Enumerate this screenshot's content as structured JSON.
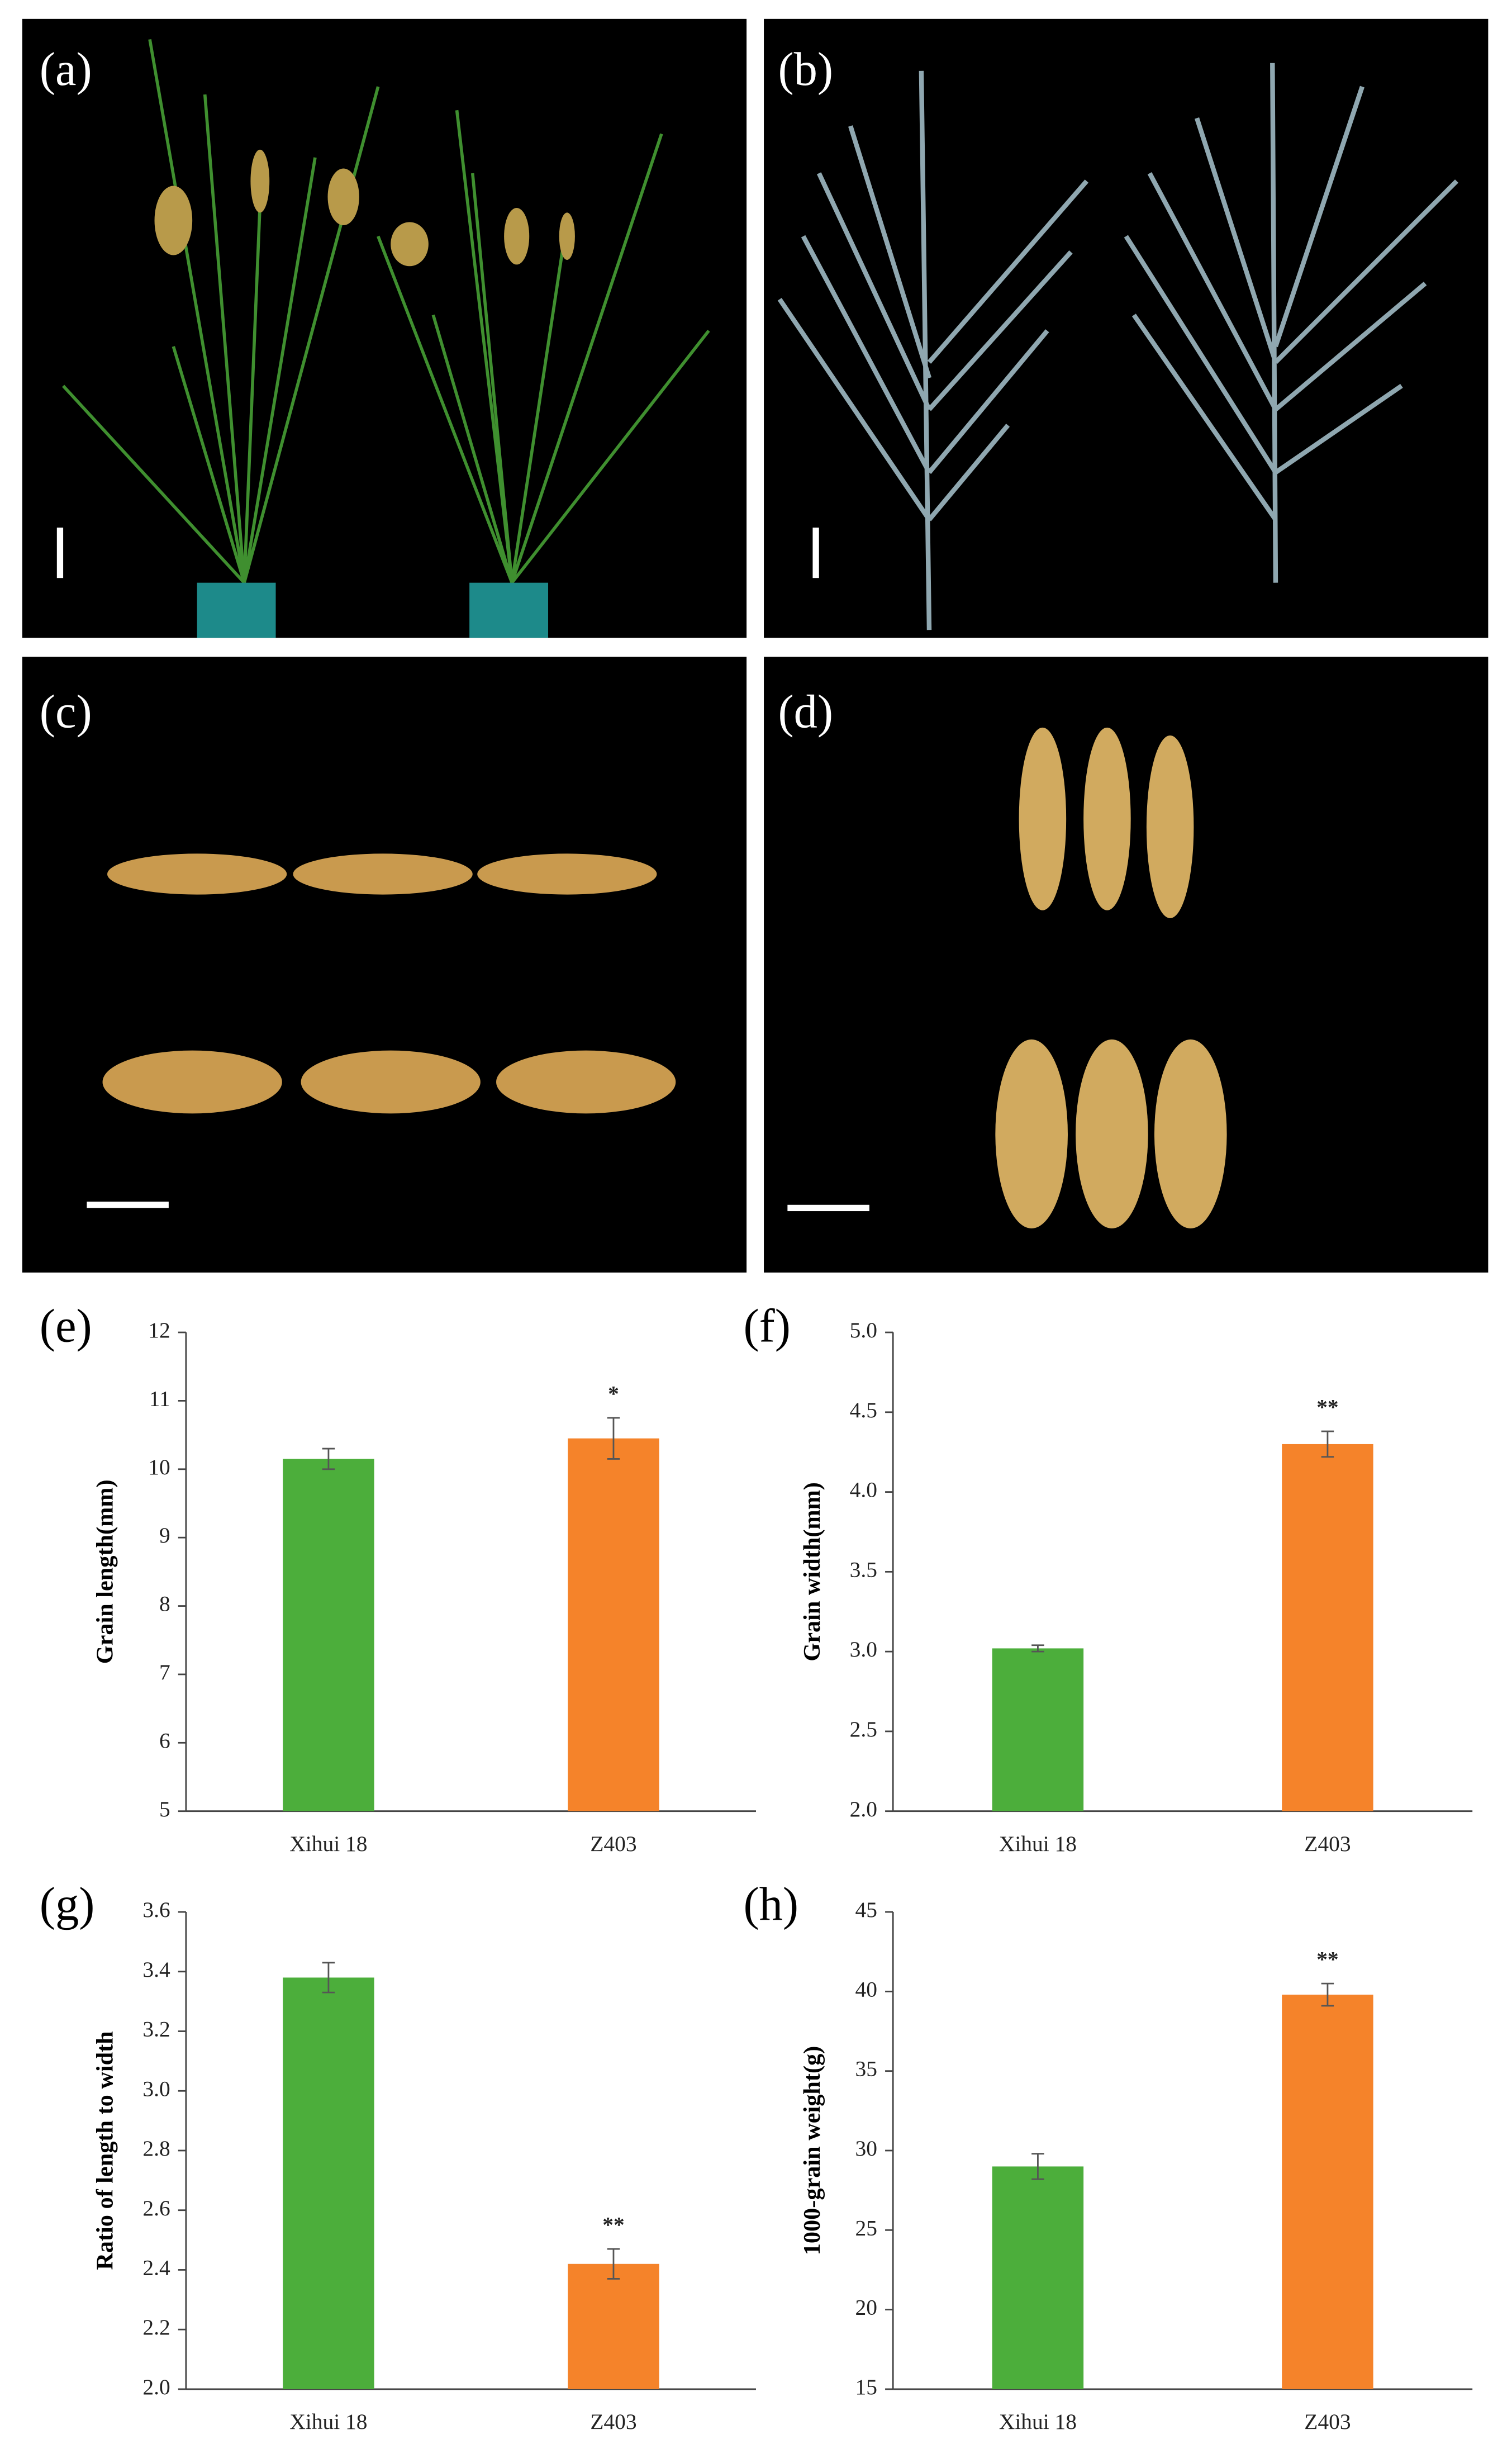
{
  "panel_labels": [
    "(a)",
    "(b)",
    "(c)",
    "(d)"
  ],
  "chart_data": [
    {
      "type": "bar",
      "label": "(e)",
      "ylabel": "Grain length(mm)",
      "categories": [
        "Xihui 18",
        "Z403"
      ],
      "values": [
        10.15,
        10.45
      ],
      "errors": [
        0.15,
        0.3
      ],
      "colors": [
        "#4cae3b",
        "#f5832a"
      ],
      "ylim": [
        5,
        12
      ],
      "yticks": [
        5,
        6,
        7,
        8,
        9,
        10,
        11,
        12
      ],
      "annotations": [
        {
          "text": "*",
          "category": "Z403"
        }
      ]
    },
    {
      "type": "bar",
      "label": "(f)",
      "ylabel": "Grain width(mm)",
      "categories": [
        "Xihui 18",
        "Z403"
      ],
      "values": [
        3.02,
        4.3
      ],
      "errors": [
        0.02,
        0.08
      ],
      "colors": [
        "#4cae3b",
        "#f5832a"
      ],
      "ylim": [
        2.0,
        5.0
      ],
      "yticks": [
        {
          "value": 2,
          "label": "2.0"
        },
        2.5,
        {
          "value": 3,
          "label": "3.0"
        },
        3.5,
        {
          "value": 4,
          "label": "4.0"
        },
        4.5,
        {
          "value": 5,
          "label": "5.0"
        }
      ],
      "annotations": [
        {
          "text": "**",
          "category": "Z403"
        }
      ]
    },
    {
      "type": "bar",
      "label": "(g)",
      "ylabel": "Ratio of length to width",
      "categories": [
        "Xihui 18",
        "Z403"
      ],
      "values": [
        3.38,
        2.42
      ],
      "errors": [
        0.05,
        0.05
      ],
      "colors": [
        "#4cae3b",
        "#f5832a"
      ],
      "ylim": [
        2.0,
        3.6
      ],
      "yticks": [
        {
          "value": 2,
          "label": "2.0"
        },
        2.2,
        2.4,
        2.6,
        2.8,
        {
          "value": 3,
          "label": "3.0"
        },
        3.2,
        3.4,
        3.6
      ],
      "annotations": [
        {
          "text": "**",
          "category": "Z403"
        }
      ]
    },
    {
      "type": "bar",
      "label": "(h)",
      "ylabel": "1000-grain weight(g)",
      "categories": [
        "Xihui 18",
        "Z403"
      ],
      "values": [
        29,
        39.8
      ],
      "errors": [
        0.8,
        0.7
      ],
      "colors": [
        "#4cae3b",
        "#f5832a"
      ],
      "ylim": [
        15,
        45
      ],
      "yticks": [
        15,
        20,
        25,
        30,
        35,
        40,
        45
      ],
      "annotations": [
        {
          "text": "**",
          "category": "Z403"
        }
      ]
    }
  ]
}
